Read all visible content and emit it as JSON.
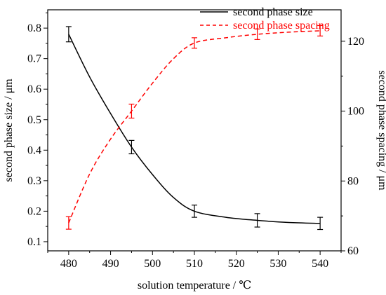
{
  "chart_data": {
    "type": "line",
    "x": [
      480,
      495,
      510,
      525,
      540
    ],
    "xlabel": "solution temperature / ℃",
    "xlim": [
      475,
      545
    ],
    "x_ticks": [
      480,
      490,
      500,
      510,
      520,
      530,
      540
    ],
    "left_axis": {
      "label": "second phase size / μm",
      "lim": [
        0.07,
        0.86
      ],
      "ticks": [
        0.1,
        0.2,
        0.3,
        0.4,
        0.5,
        0.6,
        0.7,
        0.8
      ]
    },
    "right_axis": {
      "label": "second phase spacing / μm",
      "lim": [
        60,
        129
      ],
      "ticks": [
        60,
        80,
        100,
        120
      ]
    },
    "series": [
      {
        "name": "second phase size",
        "axis": "left",
        "color": "#000000",
        "line_style": "solid",
        "values": [
          0.78,
          0.41,
          0.2,
          0.17,
          0.16
        ],
        "errors": [
          0.025,
          0.022,
          0.02,
          0.022,
          0.02
        ],
        "curve": [
          [
            480,
            0.78
          ],
          [
            485,
            0.64
          ],
          [
            490,
            0.52
          ],
          [
            495,
            0.41
          ],
          [
            500,
            0.32
          ],
          [
            505,
            0.245
          ],
          [
            510,
            0.2
          ],
          [
            517.5,
            0.18
          ],
          [
            525,
            0.17
          ],
          [
            532.5,
            0.163
          ],
          [
            540,
            0.16
          ]
        ]
      },
      {
        "name": "second phase spacing",
        "axis": "right",
        "color": "#ff0000",
        "line_style": "dashed",
        "values": [
          68,
          100,
          119.5,
          122,
          123
        ],
        "errors": [
          1.8,
          2.0,
          1.5,
          1.5,
          1.5
        ],
        "curve": [
          [
            480,
            68
          ],
          [
            485,
            82
          ],
          [
            490,
            92
          ],
          [
            495,
            100
          ],
          [
            500,
            108
          ],
          [
            505,
            115
          ],
          [
            510,
            119.5
          ],
          [
            517.5,
            121
          ],
          [
            525,
            122
          ],
          [
            532.5,
            122.6
          ],
          [
            540,
            123
          ]
        ]
      }
    ],
    "legend_position": "top-right",
    "grid": false
  }
}
